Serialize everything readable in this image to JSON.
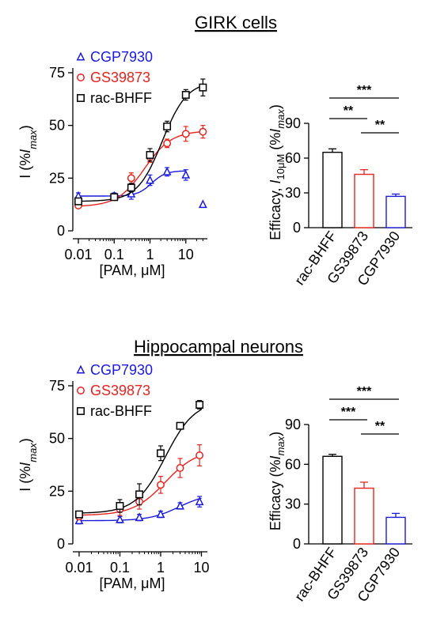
{
  "colors": {
    "CGP7930": "#1a1adb",
    "GS39873": "#e8231e",
    "rac-BHFF": "#000000"
  },
  "panels": [
    {
      "title": "GIRK cells",
      "chart_data": [
        {
          "type": "scatter",
          "xlabel": "[PAM, μM]",
          "ylabel": "I (%I_max)",
          "x_scale": "log",
          "xlim": [
            0.01,
            30
          ],
          "ylim": [
            0,
            75
          ],
          "x_ticks": [
            0.01,
            0.1,
            1,
            10
          ],
          "x_tick_labels": [
            "0.01",
            "0.1",
            "1",
            "10"
          ],
          "y_ticks": [
            0,
            25,
            50,
            75
          ],
          "y_tick_labels": [
            "0",
            "25",
            "50",
            "75"
          ],
          "legend": "top-left",
          "series": [
            {
              "name": "CGP7930",
              "marker": "triangle",
              "color": "#1a1adb",
              "points": [
                {
                  "x": 0.01,
                  "y": 16.5,
                  "e": 1.5
                },
                {
                  "x": 0.1,
                  "y": 16.5,
                  "e": 1.5
                },
                {
                  "x": 0.3,
                  "y": 17.5,
                  "e": 2.5
                },
                {
                  "x": 1,
                  "y": 24,
                  "e": 2.5
                },
                {
                  "x": 3,
                  "y": 28,
                  "e": 2
                },
                {
                  "x": 10,
                  "y": 26.5,
                  "e": 2.5
                },
                {
                  "x": 30,
                  "y": 12.5,
                  "e": 0
                }
              ],
              "fit": {
                "bottom": 16.5,
                "top": 28.5,
                "ec50": 1.1,
                "hill": 2.2,
                "xmax": 10
              }
            },
            {
              "name": "GS39873",
              "marker": "circle",
              "color": "#e8231e",
              "points": [
                {
                  "x": 0.01,
                  "y": 12,
                  "e": 1
                },
                {
                  "x": 0.1,
                  "y": 16,
                  "e": 1.5
                },
                {
                  "x": 0.3,
                  "y": 25,
                  "e": 2.5
                },
                {
                  "x": 1,
                  "y": 35,
                  "e": 2.5
                },
                {
                  "x": 3,
                  "y": 41.5,
                  "e": 2
                },
                {
                  "x": 10,
                  "y": 46,
                  "e": 3.5
                },
                {
                  "x": 30,
                  "y": 47,
                  "e": 3
                }
              ],
              "fit": {
                "bottom": 11.5,
                "top": 47.5,
                "ec50": 0.7,
                "hill": 1.15,
                "xmax": 30
              }
            },
            {
              "name": "rac-BHFF",
              "marker": "square",
              "color": "#000000",
              "points": [
                {
                  "x": 0.01,
                  "y": 14,
                  "e": 1.5
                },
                {
                  "x": 0.1,
                  "y": 16,
                  "e": 1.5
                },
                {
                  "x": 0.3,
                  "y": 20.5,
                  "e": 2
                },
                {
                  "x": 1,
                  "y": 36,
                  "e": 3
                },
                {
                  "x": 3,
                  "y": 49.5,
                  "e": 2.5
                },
                {
                  "x": 10,
                  "y": 64.5,
                  "e": 2.5
                },
                {
                  "x": 30,
                  "y": 68,
                  "e": 4
                }
              ],
              "fit": {
                "bottom": 14,
                "top": 71,
                "ec50": 2.2,
                "hill": 1.25,
                "xmax": 30
              }
            }
          ]
        },
        {
          "type": "bar",
          "ylabel_parts": [
            "Efficacy, ",
            "I",
            "10μM",
            " (%",
            "I",
            "max",
            ")"
          ],
          "ylim": [
            0,
            90
          ],
          "y_ticks": [
            0,
            30,
            60,
            90
          ],
          "y_tick_labels": [
            "0",
            "30",
            "60",
            "90"
          ],
          "categories": [
            "rac-BHFF",
            "GS39873",
            "CGP7930"
          ],
          "values": [
            65,
            46,
            27
          ],
          "errors": [
            3,
            4,
            2
          ],
          "colors": [
            "#000000",
            "#e8231e",
            "#1a1adb"
          ],
          "comparisons": [
            {
              "from": 0,
              "to": 1,
              "label": "**"
            },
            {
              "from": 1,
              "to": 2,
              "label": "**"
            },
            {
              "from": 0,
              "to": 2,
              "label": "***"
            }
          ]
        }
      ]
    },
    {
      "title": "Hippocampal neurons",
      "chart_data": [
        {
          "type": "scatter",
          "xlabel": "[PAM, μM]",
          "ylabel": "I (%I_max)",
          "x_scale": "log",
          "xlim": [
            0.01,
            10
          ],
          "ylim": [
            0,
            75
          ],
          "x_ticks": [
            0.01,
            0.1,
            1,
            10
          ],
          "x_tick_labels": [
            "0.01",
            "0.1",
            "1",
            "10"
          ],
          "y_ticks": [
            0,
            25,
            50,
            75
          ],
          "y_tick_labels": [
            "0",
            "25",
            "50",
            "75"
          ],
          "legend": "top-left",
          "series": [
            {
              "name": "CGP7930",
              "marker": "triangle",
              "color": "#1a1adb",
              "points": [
                {
                  "x": 0.01,
                  "y": 11,
                  "e": 1.5
                },
                {
                  "x": 0.1,
                  "y": 11.5,
                  "e": 1.5
                },
                {
                  "x": 0.3,
                  "y": 12.5,
                  "e": 1.5
                },
                {
                  "x": 1,
                  "y": 14,
                  "e": 1.5
                },
                {
                  "x": 3,
                  "y": 18,
                  "e": 1.5
                },
                {
                  "x": 9,
                  "y": 20,
                  "e": 2.5
                }
              ],
              "fit": {
                "bottom": 11,
                "top": 24,
                "ec50": 2.8,
                "hill": 1.2,
                "xmax": 10
              }
            },
            {
              "name": "GS39873",
              "marker": "circle",
              "color": "#e8231e",
              "points": [
                {
                  "x": 0.01,
                  "y": 13,
                  "e": 1.5
                },
                {
                  "x": 0.1,
                  "y": 16.5,
                  "e": 3
                },
                {
                  "x": 0.3,
                  "y": 20,
                  "e": 3.5
                },
                {
                  "x": 1,
                  "y": 28,
                  "e": 4
                },
                {
                  "x": 3,
                  "y": 36,
                  "e": 4.5
                },
                {
                  "x": 9,
                  "y": 42,
                  "e": 5
                }
              ],
              "fit": {
                "bottom": 13.5,
                "top": 45,
                "ec50": 1.3,
                "hill": 1.1,
                "xmax": 10
              }
            },
            {
              "name": "rac-BHFF",
              "marker": "square",
              "color": "#000000",
              "points": [
                {
                  "x": 0.01,
                  "y": 14,
                  "e": 1.5
                },
                {
                  "x": 0.1,
                  "y": 18,
                  "e": 3
                },
                {
                  "x": 0.3,
                  "y": 23.5,
                  "e": 5
                },
                {
                  "x": 1,
                  "y": 43,
                  "e": 3.5
                },
                {
                  "x": 3,
                  "y": 56,
                  "e": 1.5
                },
                {
                  "x": 9,
                  "y": 66,
                  "e": 2
                }
              ],
              "fit": {
                "bottom": 14.5,
                "top": 68,
                "ec50": 1.3,
                "hill": 1.2,
                "xmax": 10
              }
            }
          ]
        },
        {
          "type": "bar",
          "ylabel_parts": [
            "Efficacy (%",
            "I",
            "max",
            ")"
          ],
          "ylim": [
            0,
            90
          ],
          "y_ticks": [
            0,
            30,
            60,
            90
          ],
          "y_tick_labels": [
            "0",
            "30",
            "60",
            "90"
          ],
          "categories": [
            "rac-BHFF",
            "GS39873",
            "CGP7930"
          ],
          "values": [
            66,
            42,
            20
          ],
          "errors": [
            1.5,
            4.5,
            3
          ],
          "colors": [
            "#000000",
            "#e8231e",
            "#1a1adb"
          ],
          "comparisons": [
            {
              "from": 0,
              "to": 1,
              "label": "***"
            },
            {
              "from": 1,
              "to": 2,
              "label": "**"
            },
            {
              "from": 0,
              "to": 2,
              "label": "***"
            }
          ]
        }
      ]
    }
  ]
}
